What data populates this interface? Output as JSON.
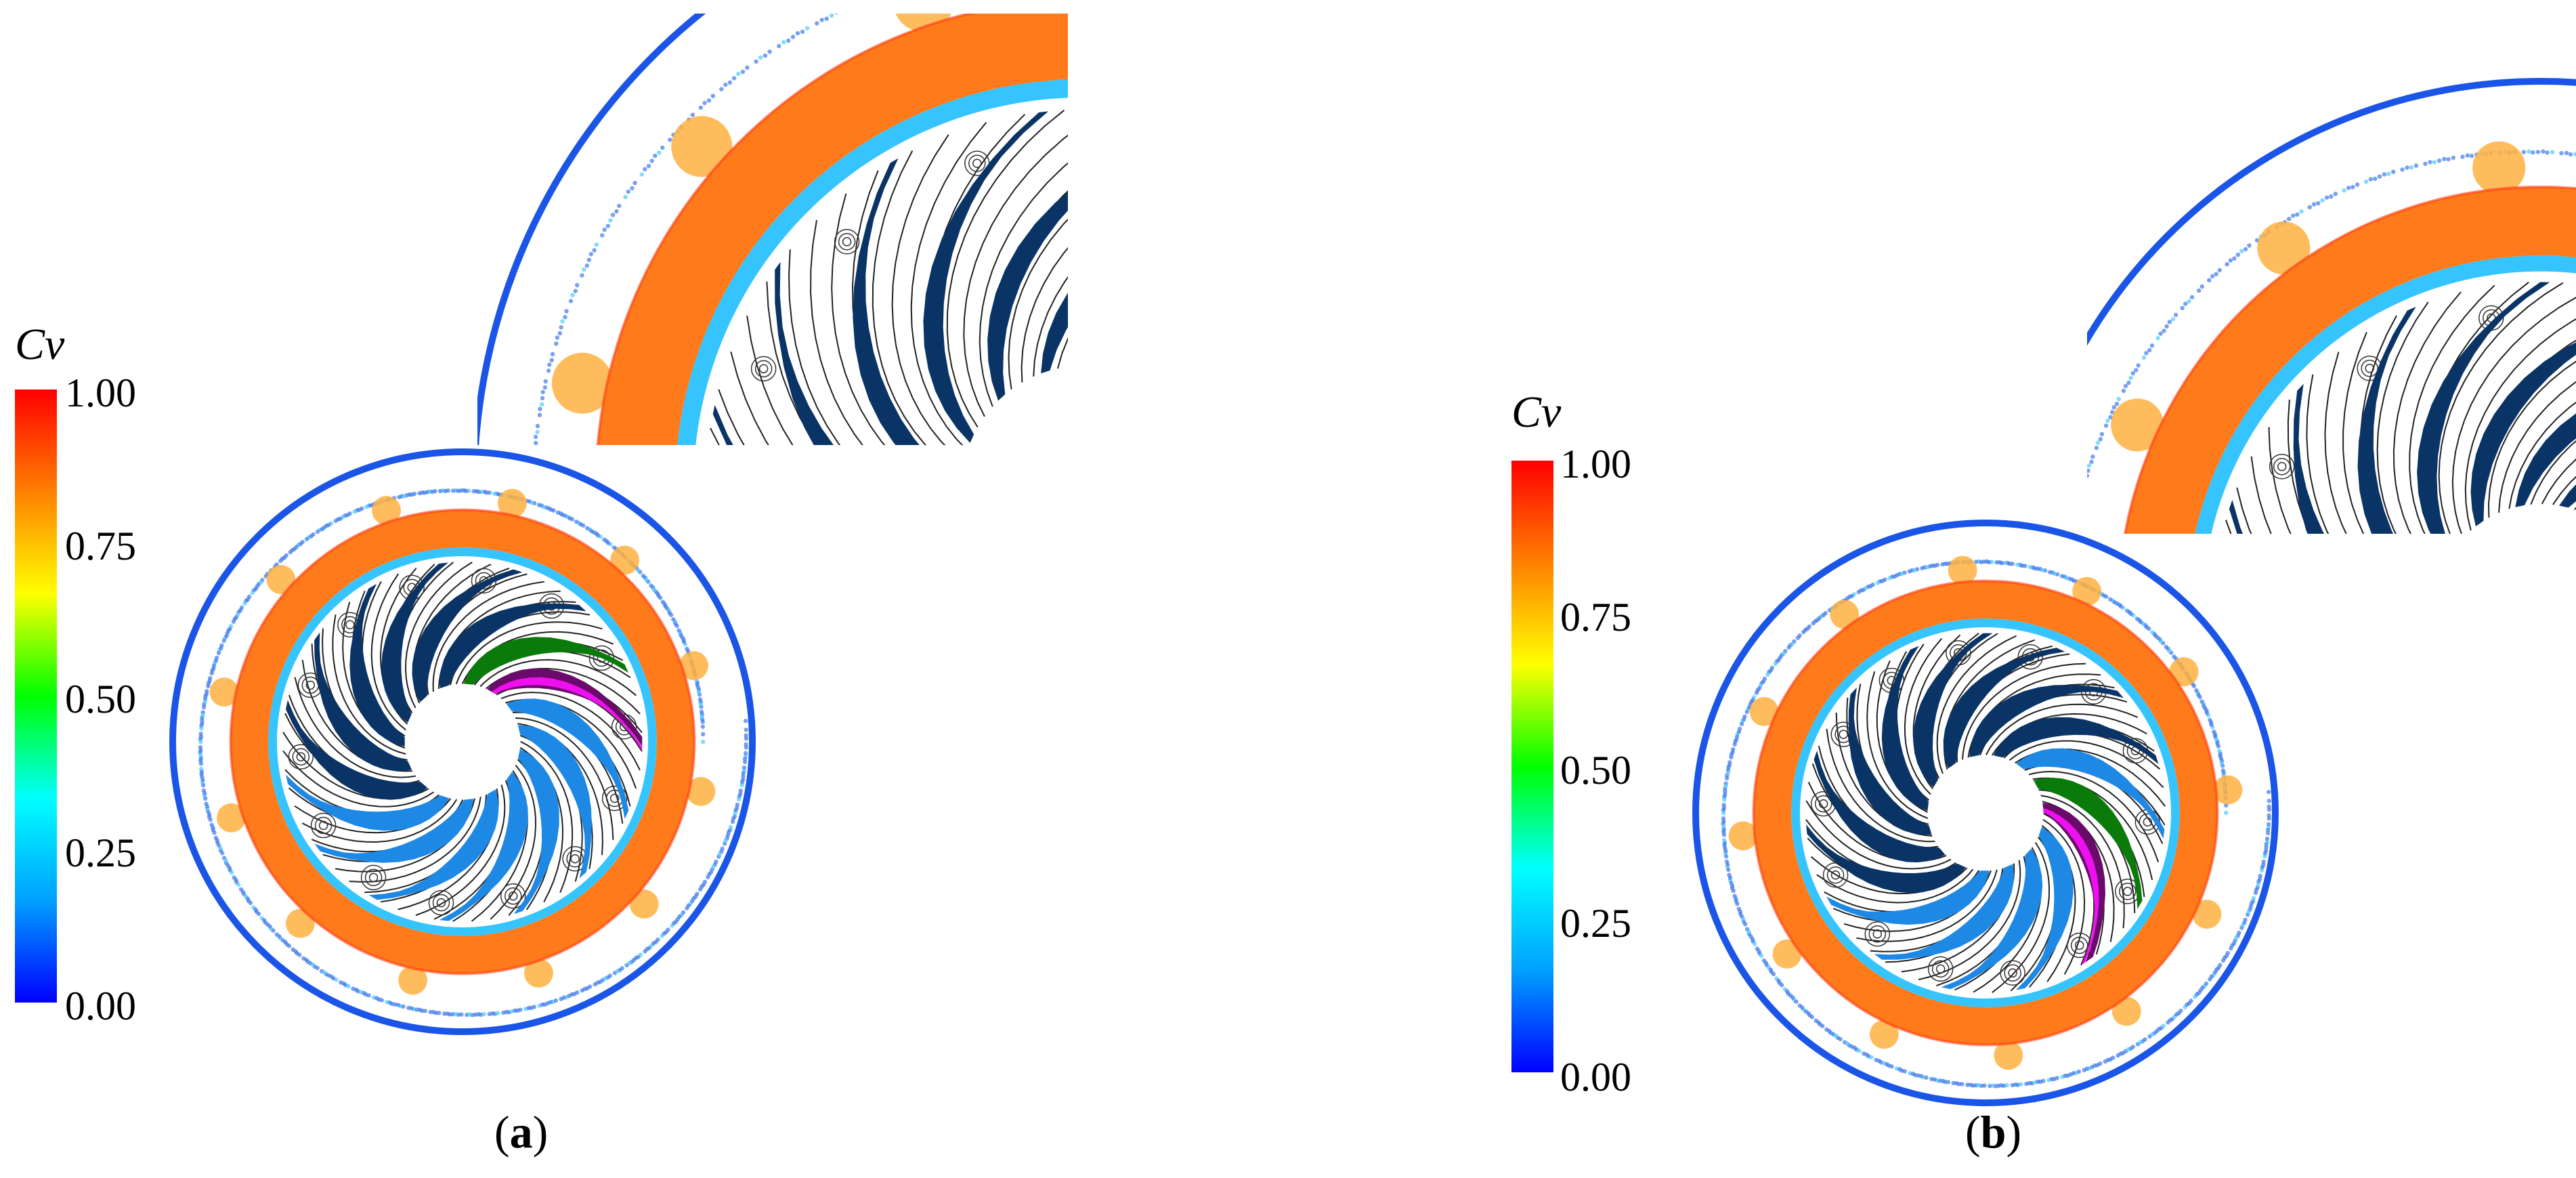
{
  "panels": [
    {
      "id": "a",
      "colorbar": {
        "title": "Cv",
        "ticks": [
          "1.00",
          "0.75",
          "0.50",
          "0.25",
          "0.00"
        ]
      },
      "caption": {
        "open": "(",
        "letter": "a",
        "close": ")"
      }
    },
    {
      "id": "b",
      "colorbar": {
        "title": "Cv",
        "ticks": [
          "1.00",
          "0.75",
          "0.50",
          "0.25",
          "0.00"
        ]
      },
      "caption": {
        "open": "(",
        "letter": "b",
        "close": ")"
      }
    }
  ],
  "colors": {
    "scale": [
      "#0000ff",
      "#00a0ff",
      "#00ffff",
      "#00ff00",
      "#ffff00",
      "#ff8000",
      "#ff0000"
    ],
    "stator_ring": "#ff7a1a",
    "inner_ring": "#36c4ff",
    "outer_edge": "#1a55e8",
    "blade_dark": "#0b3466",
    "blade_light": "#1e88e5",
    "blade_green": "#0a7a0a",
    "blade_purple": "#6a0a6a",
    "blade_magenta": "#ee10ee"
  }
}
